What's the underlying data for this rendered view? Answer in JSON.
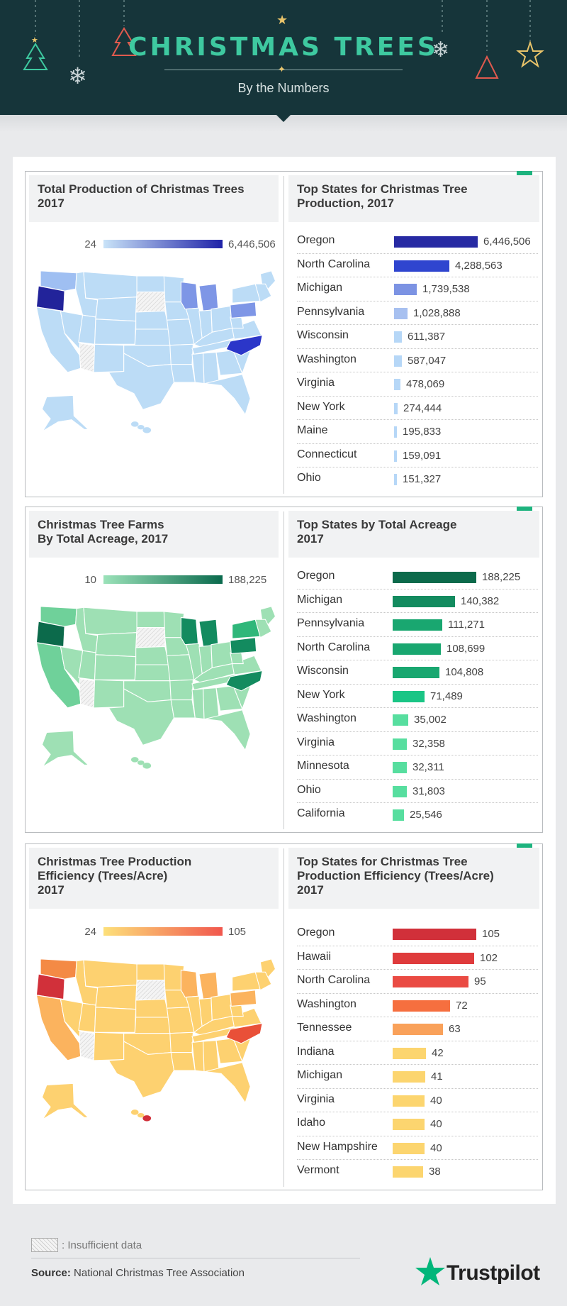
{
  "header": {
    "title": "CHRISTMAS TREES",
    "subtitle": "By the Numbers"
  },
  "colors": {
    "header_bg": "#16353a",
    "title": "#3ec9a0",
    "ribbon": "#1db37e"
  },
  "panels": [
    {
      "map_title": "Total Production of Christmas Trees\n2017",
      "legend_min": "24",
      "legend_max": "6,446,506",
      "legend_colors": [
        "#c9e3f8",
        "#1f22a8"
      ],
      "list_title": "Top States for Christmas Tree\nProduction, 2017",
      "map_palette": {
        "base": "#bcdcf6",
        "light": "#9fbff2",
        "mid": "#7e96e6",
        "high": "#2b36c9",
        "top": "#22239a"
      },
      "map_highlights": {
        "wa": "light",
        "or": "top",
        "mi": "mid",
        "wi": "mid",
        "pa": "mid",
        "nc": "high",
        "ca": "base",
        "ny": "base"
      }
    },
    {
      "map_title": "Christmas Tree Farms\nBy Total Acreage, 2017",
      "legend_min": "10",
      "legend_max": "188,225",
      "legend_colors": [
        "#9be2b9",
        "#0a6a4d"
      ],
      "list_title": "Top States by Total Acreage\n 2017",
      "map_palette": {
        "base": "#9ee0b4",
        "light": "#6fd19a",
        "mid": "#2fb77a",
        "high": "#138b5f",
        "top": "#0c6a4b"
      },
      "map_highlights": {
        "wa": "light",
        "or": "top",
        "mi": "high",
        "wi": "high",
        "pa": "high",
        "nc": "high",
        "ca": "light",
        "ny": "mid"
      }
    },
    {
      "map_title": "Christmas Tree Production\nEfficiency (Trees/Acre)\n2017",
      "legend_min": "24",
      "legend_max": "105",
      "legend_colors": [
        "#fde07a",
        "#f1574d"
      ],
      "list_title": "Top States for Christmas Tree\nProduction Efficiency (Trees/Acre)\n2017",
      "map_palette": {
        "base": "#fdd170",
        "light": "#fbb35e",
        "mid": "#f48a45",
        "high": "#e95038",
        "top": "#d1303a"
      },
      "map_highlights": {
        "wa": "mid",
        "or": "top",
        "mi": "light",
        "wi": "light",
        "pa": "light",
        "nc": "high",
        "ca": "light",
        "ny": "base"
      }
    }
  ],
  "chart_data": [
    {
      "type": "bar",
      "title": "Top States for Christmas Tree Production, 2017",
      "categories": [
        "Oregon",
        "North Carolina",
        "Michigan",
        "Pennsylvania",
        "Wisconsin",
        "Washington",
        "Virginia",
        "New York",
        "Maine",
        "Connecticut",
        "Ohio"
      ],
      "values": [
        6446506,
        4288563,
        1739538,
        1028888,
        611387,
        587047,
        478069,
        274444,
        195833,
        159091,
        151327
      ],
      "labels": [
        "6,446,506",
        "4,288,563",
        "1,739,538",
        "1,028,888",
        "611,387",
        "587,047",
        "478,069",
        "274,444",
        "195,833",
        "159,091",
        "151,327"
      ],
      "bar_colors": [
        "#272aa3",
        "#2f45cf",
        "#7c93e3",
        "#a7c0f0",
        "#b6d7f7",
        "#b6d7f7",
        "#b6d7f7",
        "#b6d7f7",
        "#b6d7f7",
        "#b6d7f7",
        "#b6d7f7"
      ],
      "max": 6446506
    },
    {
      "type": "bar",
      "title": "Top States by Total Acreage 2017",
      "categories": [
        "Oregon",
        "Michigan",
        "Pennsylvania",
        "North Carolina",
        "Wisconsin",
        "New York",
        "Washington",
        "Virginia",
        "Minnesota",
        "Ohio",
        "California"
      ],
      "values": [
        188225,
        140382,
        111271,
        108699,
        104808,
        71489,
        35002,
        32358,
        32311,
        31803,
        25546
      ],
      "labels": [
        "188,225",
        "140,382",
        "111,271",
        "108,699",
        "104,808",
        "71,489",
        "35,002",
        "32,358",
        "32,311",
        "31,803",
        "25,546"
      ],
      "bar_colors": [
        "#0c6a4b",
        "#138b5f",
        "#19a770",
        "#19a770",
        "#19a770",
        "#1ac585",
        "#57de9f",
        "#57de9f",
        "#57de9f",
        "#57de9f",
        "#57de9f"
      ],
      "max": 188225
    },
    {
      "type": "bar",
      "title": "Top States for Christmas Tree Production Efficiency (Trees/Acre) 2017",
      "categories": [
        "Oregon",
        "Hawaii",
        "North Carolina",
        "Washington",
        "Tennessee",
        "Indiana",
        "Michigan",
        "Virginia",
        "Idaho",
        "New Hampshire",
        "Vermont"
      ],
      "values": [
        105,
        102,
        95,
        72,
        63,
        42,
        41,
        40,
        40,
        40,
        38
      ],
      "labels": [
        "105",
        "102",
        "95",
        "72",
        "63",
        "42",
        "41",
        "40",
        "40",
        "40",
        "38"
      ],
      "bar_colors": [
        "#d1303a",
        "#df3b3c",
        "#ea4b43",
        "#f66f3f",
        "#f9a15a",
        "#fcd56f",
        "#fcd56f",
        "#fcd56f",
        "#fcd56f",
        "#fcd56f",
        "#fcd56f"
      ],
      "max": 105
    }
  ],
  "footer": {
    "legend_label": ": Insufficient data",
    "source_label": "Source:",
    "source_text": " National Christmas Tree Association",
    "brand": "Trustpilot"
  }
}
